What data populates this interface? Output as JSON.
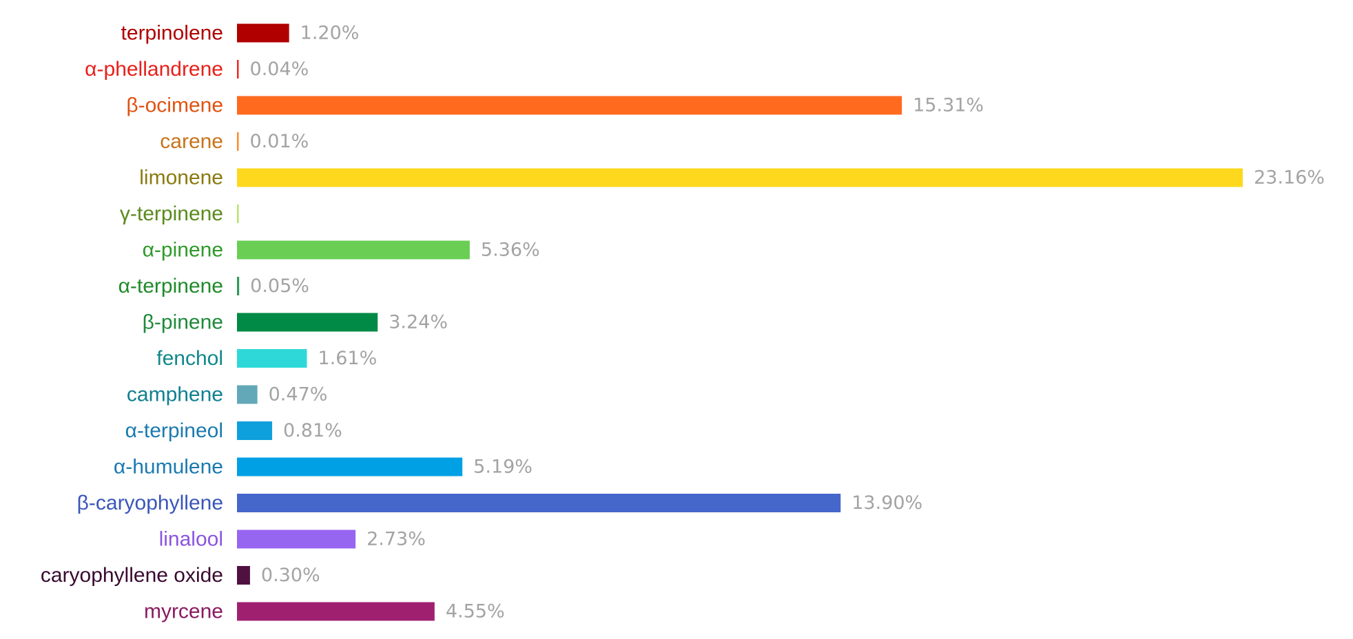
{
  "chart_data": {
    "type": "bar",
    "orientation": "horizontal",
    "title": "",
    "xlabel": "",
    "ylabel": "",
    "grid": false,
    "xlim": [
      0,
      23.16
    ],
    "unit": "%",
    "bars": [
      {
        "label": "terpinolene",
        "value": 1.2,
        "value_label": "1.20%",
        "color": "#b00000",
        "label_color": "#b00000"
      },
      {
        "label": "α-phellandrene",
        "value": 0.04,
        "value_label": "0.04%",
        "color": "#f0281e",
        "label_color": "#e8201a"
      },
      {
        "label": "β-ocimene",
        "value": 15.31,
        "value_label": "15.31%",
        "color": "#ff6a1f",
        "label_color": "#e05212"
      },
      {
        "label": "carene",
        "value": 0.01,
        "value_label": "0.01%",
        "color": "#ff8a2a",
        "label_color": "#c8731a"
      },
      {
        "label": "limonene",
        "value": 23.16,
        "value_label": "23.16%",
        "color": "#fdd81d",
        "label_color": "#8a7a10"
      },
      {
        "label": "γ-terpinene",
        "value": 0.0,
        "value_label": "",
        "color": "#b7e46a",
        "label_color": "#5a8a1c"
      },
      {
        "label": "α-pinene",
        "value": 5.36,
        "value_label": "5.36%",
        "color": "#6ace55",
        "label_color": "#2f9a2a"
      },
      {
        "label": "α-terpinene",
        "value": 0.05,
        "value_label": "0.05%",
        "color": "#2f9a5a",
        "label_color": "#1f8a2a"
      },
      {
        "label": "β-pinene",
        "value": 3.24,
        "value_label": "3.24%",
        "color": "#008a46",
        "label_color": "#1f8a3a"
      },
      {
        "label": "fenchol",
        "value": 1.61,
        "value_label": "1.61%",
        "color": "#2fd8d8",
        "label_color": "#10888a"
      },
      {
        "label": "camphene",
        "value": 0.47,
        "value_label": "0.47%",
        "color": "#63a8b8",
        "label_color": "#108090"
      },
      {
        "label": "α-terpineol",
        "value": 0.81,
        "value_label": "0.81%",
        "color": "#0ea0dc",
        "label_color": "#1a7ab0"
      },
      {
        "label": "α-humulene",
        "value": 5.19,
        "value_label": "5.19%",
        "color": "#00a0e4",
        "label_color": "#1a7ab0"
      },
      {
        "label": "β-caryophyllene",
        "value": 13.9,
        "value_label": "13.90%",
        "color": "#4567cc",
        "label_color": "#3a55b8"
      },
      {
        "label": "linalool",
        "value": 2.73,
        "value_label": "2.73%",
        "color": "#9766f0",
        "label_color": "#8a55e0"
      },
      {
        "label": "caryophyllene oxide",
        "value": 0.3,
        "value_label": "0.30%",
        "color": "#501040",
        "label_color": "#3a0a30"
      },
      {
        "label": "myrcene",
        "value": 4.55,
        "value_label": "4.55%",
        "color": "#a02070",
        "label_color": "#8a1a60"
      }
    ]
  }
}
